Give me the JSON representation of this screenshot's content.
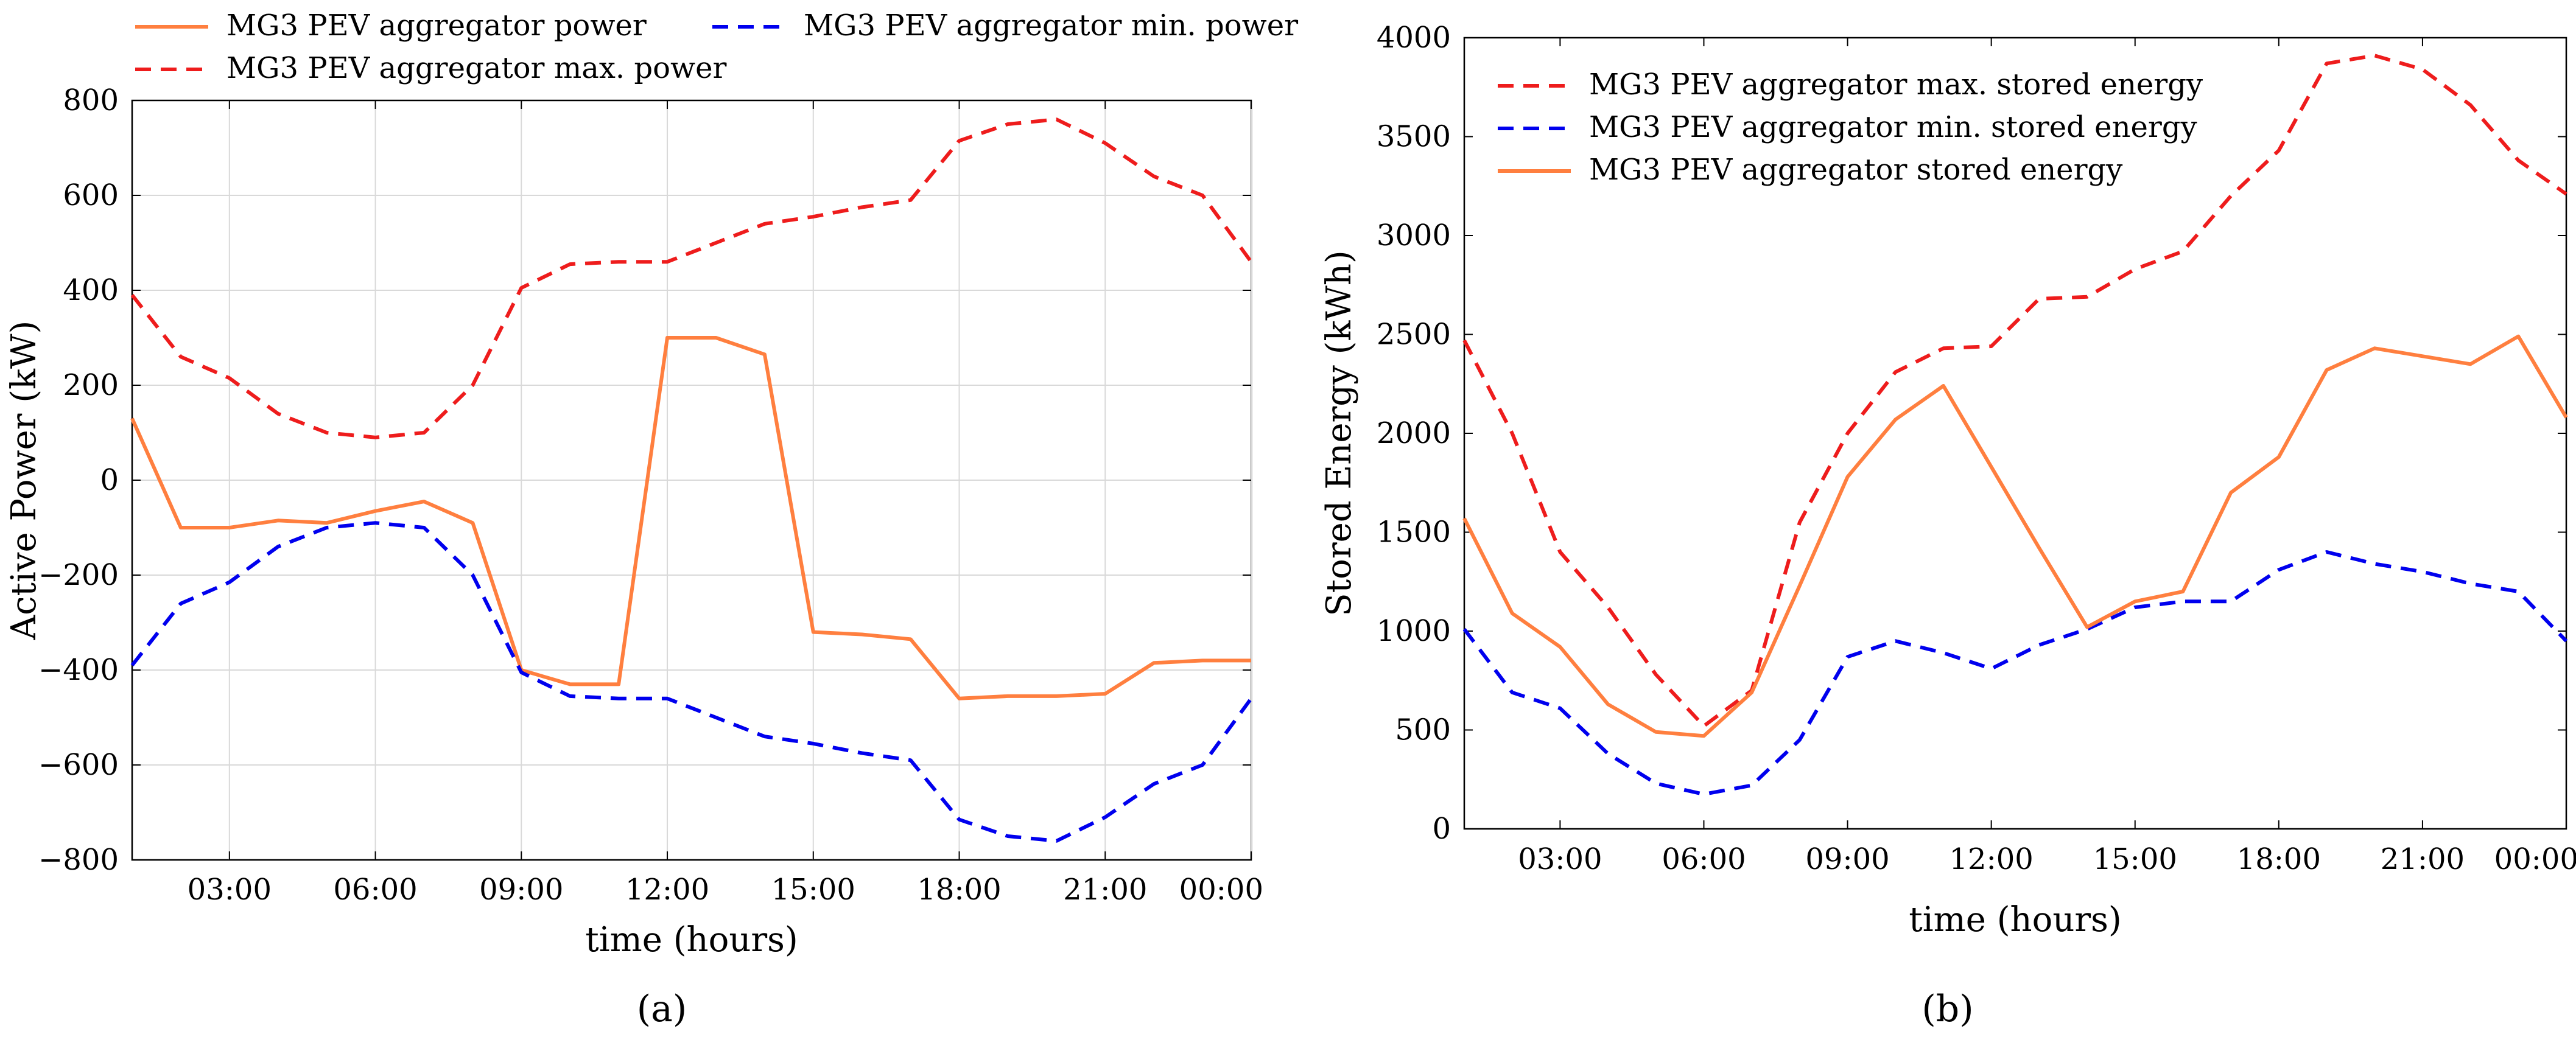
{
  "chart_data": [
    {
      "type": "line",
      "panel_label": "(a)",
      "xlabel": "time (hours)",
      "ylabel": "Active Power (kW)",
      "x_hours": [
        1,
        2,
        3,
        4,
        5,
        6,
        7,
        8,
        9,
        10,
        11,
        12,
        13,
        14,
        15,
        16,
        17,
        18,
        19,
        20,
        21,
        22,
        23,
        24
      ],
      "x_ticks": [
        3,
        6,
        9,
        12,
        15,
        18,
        21,
        24
      ],
      "x_tick_labels": [
        "03:00",
        "06:00",
        "09:00",
        "12:00",
        "15:00",
        "18:00",
        "21:00",
        "00:00"
      ],
      "xlim": [
        1,
        24
      ],
      "ylim": [
        -800,
        800
      ],
      "y_ticks": [
        -800,
        -600,
        -400,
        -200,
        0,
        200,
        400,
        600,
        800
      ],
      "y_tick_labels": [
        "−800",
        "−600",
        "−400",
        "−200",
        "0",
        "200",
        "400",
        "600",
        "800"
      ],
      "grid": true,
      "legend_position": "top, outside plot",
      "series": [
        {
          "name": "MG3 PEV aggregator power",
          "color": "#ff7f3f",
          "style": "solid",
          "values": [
            130,
            -100,
            -100,
            -85,
            -90,
            -65,
            -45,
            -90,
            -400,
            -430,
            -430,
            300,
            300,
            265,
            -320,
            -325,
            -335,
            -460,
            -455,
            -455,
            -450,
            -385,
            -380,
            -380
          ]
        },
        {
          "name": "MG3 PEV aggregator min. power",
          "color": "#0000ee",
          "style": "dashed",
          "values": [
            -390,
            -260,
            -215,
            -140,
            -100,
            -90,
            -100,
            -200,
            -405,
            -455,
            -460,
            -460,
            -500,
            -540,
            -555,
            -575,
            -590,
            -715,
            -750,
            -760,
            -710,
            -640,
            -600,
            -460
          ]
        },
        {
          "name": "MG3 PEV aggregator max. power",
          "color": "#ee1c1c",
          "style": "dashed",
          "values": [
            390,
            260,
            215,
            140,
            100,
            90,
            100,
            200,
            405,
            455,
            460,
            460,
            500,
            540,
            555,
            575,
            590,
            715,
            750,
            760,
            710,
            640,
            600,
            460
          ]
        }
      ]
    },
    {
      "type": "line",
      "panel_label": "(b)",
      "xlabel": "time (hours)",
      "ylabel": "Stored Energy (kWh)",
      "x_hours": [
        1,
        2,
        3,
        4,
        5,
        6,
        7,
        8,
        9,
        10,
        11,
        12,
        13,
        14,
        15,
        16,
        17,
        18,
        19,
        20,
        21,
        22,
        23,
        24
      ],
      "x_ticks": [
        3,
        6,
        9,
        12,
        15,
        18,
        21,
        24
      ],
      "x_tick_labels": [
        "03:00",
        "06:00",
        "09:00",
        "12:00",
        "15:00",
        "18:00",
        "21:00",
        "00:00"
      ],
      "xlim": [
        1,
        24
      ],
      "ylim": [
        0,
        4000
      ],
      "y_ticks": [
        0,
        500,
        1000,
        1500,
        2000,
        2500,
        3000,
        3500,
        4000
      ],
      "y_tick_labels": [
        "0",
        "500",
        "1000",
        "1500",
        "2000",
        "2500",
        "3000",
        "3500",
        "4000"
      ],
      "grid": false,
      "legend_position": "top-left, inside plot",
      "series": [
        {
          "name": "MG3 PEV aggregator max. stored energy",
          "color": "#ee1c1c",
          "style": "dashed",
          "values": [
            2470,
            2000,
            1400,
            1120,
            780,
            520,
            700,
            1550,
            2000,
            2310,
            2430,
            2440,
            2680,
            2690,
            2830,
            2920,
            3200,
            3430,
            3870,
            3910,
            3840,
            3660,
            3380,
            3210
          ]
        },
        {
          "name": "MG3 PEV aggregator min. stored energy",
          "color": "#0000ee",
          "style": "dashed",
          "values": [
            1010,
            690,
            610,
            380,
            230,
            175,
            220,
            450,
            870,
            950,
            890,
            810,
            930,
            1010,
            1120,
            1150,
            1150,
            1310,
            1400,
            1340,
            1300,
            1240,
            1200,
            950
          ]
        },
        {
          "name": "MG3 PEV aggregator stored energy",
          "color": "#ff7f3f",
          "style": "solid",
          "values": [
            1570,
            1090,
            920,
            630,
            490,
            470,
            690,
            1230,
            1780,
            2070,
            2240,
            1830,
            1420,
            1020,
            1150,
            1200,
            1700,
            1880,
            2320,
            2430,
            2390,
            2350,
            2490,
            2080
          ]
        }
      ]
    }
  ]
}
